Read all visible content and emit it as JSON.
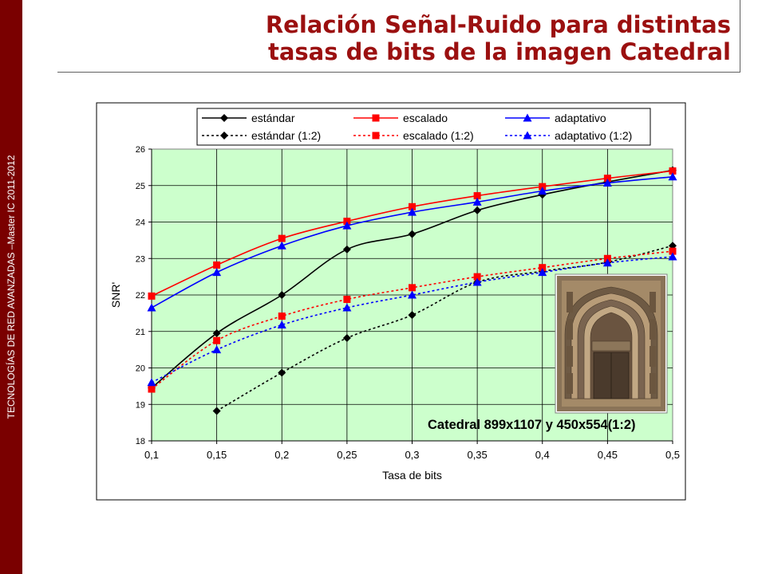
{
  "slide": {
    "title_line1": "Relación Señal-Ruido para distintas",
    "title_line2": "tasas de bits de la imagen Catedral",
    "side_label": "TECNOLOGÍAS DE RED AVANZADAS –Master IC 2011-2012",
    "colors": {
      "sidebar": "#7a0000",
      "title": "#9b1010",
      "plot_bg": "#ccffcc"
    }
  },
  "chart_data": {
    "type": "line",
    "xlabel": "Tasa de bits",
    "ylabel": "SNR'",
    "xlim": [
      0.1,
      0.5
    ],
    "ylim": [
      18,
      26
    ],
    "x_ticks": [
      "0,1",
      "0,15",
      "0,2",
      "0,25",
      "0,3",
      "0,35",
      "0,4",
      "0,45",
      "0,5"
    ],
    "y_ticks": [
      "18",
      "19",
      "20",
      "21",
      "22",
      "23",
      "24",
      "25",
      "26"
    ],
    "grid": true,
    "legend_position": "top",
    "annotation": "Catedral 899x1107 y 450x554(1:2)",
    "inset_image": "cathedral-portal-photo",
    "x": [
      0.1,
      0.15,
      0.2,
      0.25,
      0.3,
      0.35,
      0.4,
      0.45,
      0.5
    ],
    "series": [
      {
        "name": "estándar",
        "color": "#000000",
        "marker": "diamond",
        "dash": "solid",
        "values": [
          19.45,
          20.95,
          22.0,
          23.25,
          23.67,
          24.32,
          24.75,
          25.1,
          25.42
        ]
      },
      {
        "name": "escalado",
        "color": "#ff0000",
        "marker": "square",
        "dash": "solid",
        "values": [
          21.97,
          22.82,
          23.55,
          24.02,
          24.42,
          24.72,
          24.97,
          25.2,
          25.4
        ]
      },
      {
        "name": "adaptativo",
        "color": "#0000ff",
        "marker": "triangle",
        "dash": "solid",
        "values": [
          21.65,
          22.62,
          23.35,
          23.9,
          24.27,
          24.55,
          24.85,
          25.07,
          25.24
        ]
      },
      {
        "name": "estándar (1:2)",
        "color": "#000000",
        "marker": "diamond",
        "dash": "dotted",
        "values": [
          null,
          18.82,
          19.87,
          20.82,
          21.45,
          22.35,
          22.65,
          22.9,
          23.35
        ]
      },
      {
        "name": "escalado (1:2)",
        "color": "#ff0000",
        "marker": "square",
        "dash": "dotted",
        "values": [
          19.42,
          20.75,
          21.42,
          21.88,
          22.2,
          22.5,
          22.75,
          23.0,
          23.2
        ]
      },
      {
        "name": "adaptativo (1:2)",
        "color": "#0000ff",
        "marker": "triangle",
        "dash": "dotted",
        "values": [
          19.6,
          20.5,
          21.18,
          21.65,
          22.0,
          22.35,
          22.62,
          22.88,
          23.05
        ]
      }
    ]
  }
}
